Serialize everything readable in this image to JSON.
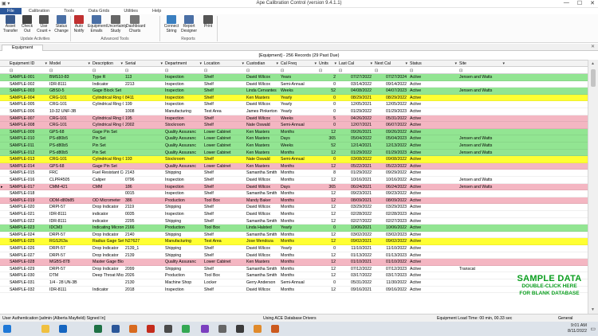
{
  "window": {
    "title": "Ape Calibration Control (version 9.4.1.1)",
    "controls": [
      "—",
      "☐",
      "✕"
    ]
  },
  "menu": [
    "File",
    "Calibration",
    "Tools",
    "Data Grids",
    "Utilities",
    "Help"
  ],
  "ribbon": {
    "buttons": [
      {
        "id": "asset-transfer",
        "l1": "Asset",
        "l2": "Transfer",
        "color": "#3a5a8c"
      },
      {
        "id": "check-out",
        "l1": "Check",
        "l2": "Out",
        "color": "#444444"
      },
      {
        "id": "use-count",
        "l1": "Use",
        "l2": "Count +",
        "color": "#555555"
      },
      {
        "id": "status-change",
        "l1": "Status",
        "l2": "Change",
        "color": "#4a6fa5"
      },
      {
        "id": "auto-notify",
        "l1": "Auto",
        "l2": "Notify",
        "color": "#c03030"
      },
      {
        "id": "equipment-emails",
        "l1": "Equipment",
        "l2": "Emails",
        "color": "#4a6fa5"
      },
      {
        "id": "uncertainty-study",
        "l1": "Uncertainty",
        "l2": "Study",
        "color": "#666666"
      },
      {
        "id": "dashboard-charts",
        "l1": "Dashboard",
        "l2": "Charts",
        "color": "#777777"
      },
      {
        "id": "connect-string",
        "l1": "Connect",
        "l2": "String",
        "color": "#3a7fc0"
      },
      {
        "id": "report-designer",
        "l1": "Report",
        "l2": "Designer",
        "color": "#4a6fa5"
      },
      {
        "id": "print",
        "l1": "Print",
        "l2": "",
        "color": "#555555"
      }
    ],
    "groups": [
      "Update Activities",
      "Advanced Tools",
      "Reports"
    ]
  },
  "tab": {
    "label": "Equipment",
    "close": "✕"
  },
  "grid": {
    "header": "[Equipment] - 256 Records (29 Past Due)",
    "columns": [
      "Equipment ID",
      "Model",
      "Description",
      "Serial",
      "Department",
      "Location",
      "Custodian",
      "Cal Freq",
      "Units",
      "Last Cal",
      "Next Cal",
      "Status",
      "Site"
    ],
    "rows": [
      {
        "id": "SAMPLE-001",
        "model": "BMS10-83",
        "desc": "Type R",
        "serial": "113",
        "dept": "Inspection",
        "loc": "Shelf",
        "cust": "David Wilcox",
        "freq": "Years",
        "units": "2",
        "last": "07/27/2022",
        "next": "07/27/2024",
        "status": "Active",
        "site": "Jensen and Watts",
        "color": "green"
      },
      {
        "id": "SAMPLE-002",
        "model": "IDR-8111",
        "desc": "Indicator",
        "serial": "2213",
        "dept": "Inspection",
        "loc": "Shelf",
        "cust": "David Wilcox",
        "freq": "Semi-Annual",
        "units": "0",
        "last": "03/14/2022",
        "next": "09/14/2022",
        "status": "Active",
        "site": "",
        "color": "white"
      },
      {
        "id": "SAMPLE-003",
        "model": "GBS0-5",
        "desc": "Gage Block Set",
        "serial": "",
        "dept": "Inspection",
        "loc": "Shelf",
        "cust": "Linda Cervantes",
        "freq": "Weeks",
        "units": "52",
        "last": "04/08/2022",
        "next": "04/07/2023",
        "status": "Active",
        "site": "Jensen and Watts",
        "color": "green"
      },
      {
        "id": "SAMPLE-004",
        "model": "CRG-101",
        "desc": "Cylindrical Ring G",
        "serial": "8411",
        "dept": "Inspection",
        "loc": "Shelf",
        "cust": "Ken Masters",
        "freq": "Yearly",
        "units": "0",
        "last": "08/29/2021",
        "next": "08/29/2022",
        "status": "Active",
        "site": "",
        "color": "yellow"
      },
      {
        "id": "SAMPLE-005",
        "model": "CRG-101",
        "desc": "Cylindrical Ring G",
        "serial": "199",
        "dept": "Inspection",
        "loc": "Shelf",
        "cust": "David Wilcox",
        "freq": "Yearly",
        "units": "0",
        "last": "12/05/2021",
        "next": "12/05/2022",
        "status": "Active",
        "site": "",
        "color": "white"
      },
      {
        "id": "SAMPLE-006",
        "model": "10-32 UNF-3B",
        "desc": "",
        "serial": "1008",
        "dept": "Manufacturing",
        "loc": "Test Area",
        "cust": "James Pinkerton",
        "freq": "Yearly",
        "units": "0",
        "last": "01/29/2022",
        "next": "01/29/2023",
        "status": "Active",
        "site": "",
        "color": "white"
      },
      {
        "id": "SAMPLE-007",
        "model": "CRG-101",
        "desc": "Cylindrical Ring G",
        "serial": "195",
        "dept": "Inspection",
        "loc": "Shelf",
        "cust": "David Wilcox",
        "freq": "Weeks",
        "units": "5",
        "last": "04/26/2022",
        "next": "05/31/2022",
        "status": "Active",
        "site": "",
        "color": "pink"
      },
      {
        "id": "SAMPLE-008",
        "model": "CRG-101",
        "desc": "Cylindrical Ring G",
        "serial": "2002",
        "dept": "Stockroom",
        "loc": "Shelf",
        "cust": "Nate Oswald",
        "freq": "Semi-Annual",
        "units": "0",
        "last": "12/07/2021",
        "next": "06/07/2022",
        "status": "Active",
        "site": "",
        "color": "pink"
      },
      {
        "id": "SAMPLE-009",
        "model": "GPS-68",
        "desc": "Gage Pin Set",
        "serial": "",
        "dept": "Quality Assuranc",
        "loc": "Lower Cabinet",
        "cust": "Ken Masters",
        "freq": "Months",
        "units": "12",
        "last": "09/26/2021",
        "next": "09/26/2022",
        "status": "Active",
        "site": "",
        "color": "green"
      },
      {
        "id": "SAMPLE-010",
        "model": "PS-d80b5",
        "desc": "Pin Set",
        "serial": "",
        "dept": "Quality Assuranc",
        "loc": "Lower Cabinet",
        "cust": "Ken Masters",
        "freq": "Days",
        "units": "365",
        "last": "05/04/2022",
        "next": "05/04/2023",
        "status": "Active",
        "site": "Jensen and Watts",
        "color": "green"
      },
      {
        "id": "SAMPLE-011",
        "model": "PS-d80b5",
        "desc": "Pin Set",
        "serial": "",
        "dept": "Quality Assuranc",
        "loc": "Lower Cabinet",
        "cust": "Ken Masters",
        "freq": "Weeks",
        "units": "52",
        "last": "12/14/2021",
        "next": "12/13/2022",
        "status": "Active",
        "site": "Jensen and Watts",
        "color": "green"
      },
      {
        "id": "SAMPLE-012",
        "model": "PS-d80b5",
        "desc": "Pin Set",
        "serial": "",
        "dept": "Quality Assuranc",
        "loc": "Lower Cabinet",
        "cust": "Ken Masters",
        "freq": "Months",
        "units": "12",
        "last": "01/29/2022",
        "next": "01/29/2023",
        "status": "Active",
        "site": "Jensen and Watts",
        "color": "green"
      },
      {
        "id": "SAMPLE-013",
        "model": "CRG-101",
        "desc": "Cylindrical Ring G",
        "serial": "193",
        "dept": "Stockroom",
        "loc": "Shelf",
        "cust": "Nate Oswald",
        "freq": "Semi-Annual",
        "units": "0",
        "last": "03/08/2022",
        "next": "09/08/2022",
        "status": "Active",
        "site": "",
        "color": "yellow"
      },
      {
        "id": "SAMPLE-014",
        "model": "GPS-68",
        "desc": "Gage Pin Set",
        "serial": "",
        "dept": "Quality Assuranc",
        "loc": "Lower Cabinet",
        "cust": "Ken Masters",
        "freq": "Months",
        "units": "12",
        "last": "05/22/2021",
        "next": "05/22/2022",
        "status": "Active",
        "site": "",
        "color": "pink"
      },
      {
        "id": "SAMPLE-015",
        "model": "FRC",
        "desc": "Fuel Resistant Co",
        "serial": "2143",
        "dept": "Shipping",
        "loc": "Shelf",
        "cust": "Samantha Smith",
        "freq": "Months",
        "units": "8",
        "last": "01/29/2022",
        "next": "09/29/2022",
        "status": "Active",
        "site": "",
        "color": "white"
      },
      {
        "id": "SAMPLE-016",
        "model": "CLPR4505",
        "desc": "Caliper",
        "serial": "0796",
        "dept": "Inspection",
        "loc": "Shelf",
        "cust": "David Wilcox",
        "freq": "Months",
        "units": "12",
        "last": "10/16/2021",
        "next": "10/16/2022",
        "status": "Active",
        "site": "Jensen and Watts",
        "color": "white"
      },
      {
        "id": "SAMPLE-017",
        "model": "CMM-421",
        "desc": "CMM",
        "serial": "186",
        "dept": "Inspection",
        "loc": "Shelf",
        "cust": "David Wilcox",
        "freq": "Days",
        "units": "365",
        "last": "06/24/2021",
        "next": "06/24/2022",
        "status": "Active",
        "site": "Jensen and Watts",
        "color": "pink"
      },
      {
        "id": "SAMPLE-018",
        "model": "",
        "desc": "",
        "serial": "0015",
        "dept": "Inspection",
        "loc": "Shelf",
        "cust": "Samantha Smith",
        "freq": "Months",
        "units": "12",
        "last": "09/23/2021",
        "next": "09/23/2022",
        "status": "Active",
        "site": "",
        "color": "white"
      },
      {
        "id": "SAMPLE-019",
        "model": "ODM-d80b85",
        "desc": "OD Micrometer",
        "serial": "386",
        "dept": "Production",
        "loc": "Tool Box",
        "cust": "Mandy Baker",
        "freq": "Months",
        "units": "12",
        "last": "08/09/2021",
        "next": "08/09/2022",
        "status": "Active",
        "site": "",
        "color": "pink"
      },
      {
        "id": "SAMPLE-020",
        "model": "DRPI-57",
        "desc": "Drop Indicator",
        "serial": "2119",
        "dept": "Shipping",
        "loc": "Shelf",
        "cust": "David Wilcox",
        "freq": "Months",
        "units": "12",
        "last": "03/29/2022",
        "next": "03/29/2023",
        "status": "Active",
        "site": "",
        "color": "white"
      },
      {
        "id": "SAMPLE-021",
        "model": "IDR-8111",
        "desc": "indicator",
        "serial": "0035",
        "dept": "Inspection",
        "loc": "Shelf",
        "cust": "David Wilcox",
        "freq": "Months",
        "units": "12",
        "last": "02/28/2022",
        "next": "02/28/2023",
        "status": "Active",
        "site": "",
        "color": "white"
      },
      {
        "id": "SAMPLE-022",
        "model": "IDR-8111",
        "desc": "indicator",
        "serial": "2295",
        "dept": "Shipping",
        "loc": "Shelf",
        "cust": "Samantha Smith",
        "freq": "Months",
        "units": "12",
        "last": "02/27/2022",
        "next": "02/27/2023",
        "status": "Active",
        "site": "",
        "color": "white"
      },
      {
        "id": "SAMPLE-023",
        "model": "IDCM3",
        "desc": "Indicating Microm",
        "serial": "2166",
        "dept": "Production",
        "loc": "Tool Box",
        "cust": "Linda Halsted",
        "freq": "Yearly",
        "units": "0",
        "last": "10/06/2021",
        "next": "10/06/2022",
        "status": "Active",
        "site": "",
        "color": "green"
      },
      {
        "id": "SAMPLE-024",
        "model": "DRPI-57",
        "desc": "Drop Indicator",
        "serial": "2140",
        "dept": "Shipping",
        "loc": "Shelf",
        "cust": "Samantha Smith",
        "freq": "Months",
        "units": "12",
        "last": "03/02/2022",
        "next": "03/02/2023",
        "status": "Active",
        "site": "",
        "color": "white"
      },
      {
        "id": "SAMPLE-025",
        "model": "RGS263a",
        "desc": "Radius Gage Set",
        "serial": "N27627",
        "dept": "Manufacturing",
        "loc": "Test Area",
        "cust": "Jose Mendoza",
        "freq": "Months",
        "units": "12",
        "last": "09/02/2021",
        "next": "09/02/2022",
        "status": "Active",
        "site": "",
        "color": "yellow"
      },
      {
        "id": "SAMPLE-026",
        "model": "DRPI-57",
        "desc": "Drop Indicator",
        "serial": "2139_1",
        "dept": "Shipping",
        "loc": "Shelf",
        "cust": "David Wilcox",
        "freq": "Yearly",
        "units": "0",
        "last": "11/10/2021",
        "next": "11/10/2022",
        "status": "Active",
        "site": "",
        "color": "white"
      },
      {
        "id": "SAMPLE-027",
        "model": "DRPI-57",
        "desc": "Drop Indicator",
        "serial": "2139",
        "dept": "Shipping",
        "loc": "Shelf",
        "cust": "David Wilcox",
        "freq": "Months",
        "units": "12",
        "last": "01/13/2022",
        "next": "01/13/2023",
        "status": "Active",
        "site": "",
        "color": "white"
      },
      {
        "id": "SAMPLE-028",
        "model": "MGBS-878",
        "desc": "Master Gage Bloc",
        "serial": "",
        "dept": "Quality Assuranc",
        "loc": "Lower Cabinet",
        "cust": "Ken Masters",
        "freq": "Months",
        "units": "12",
        "last": "01/10/2021",
        "next": "01/10/2022",
        "status": "Active",
        "site": "",
        "color": "pink"
      },
      {
        "id": "SAMPLE-029",
        "model": "DRPI-57",
        "desc": "Drop Indicator",
        "serial": "2099",
        "dept": "Shipping",
        "loc": "Shelf",
        "cust": "Samantha Smith",
        "freq": "Months",
        "units": "12",
        "last": "07/12/2022",
        "next": "07/12/2023",
        "status": "Active",
        "site": "Transcat",
        "color": "white"
      },
      {
        "id": "SAMPLE-030",
        "model": "DTM",
        "desc": "Deep Throat Micr",
        "serial": "2026",
        "dept": "Production",
        "loc": "Tool Box",
        "cust": "Samantha Smith",
        "freq": "Months",
        "units": "12",
        "last": "03/17/2022",
        "next": "03/17/2023",
        "status": "Active",
        "site": "",
        "color": "white"
      },
      {
        "id": "SAMPLE-031",
        "model": "1/4 - 28 UN-3B",
        "desc": "",
        "serial": "2130",
        "dept": "Machine Shop",
        "loc": "Locker",
        "cust": "Gerry Anderson",
        "freq": "Semi-Annual",
        "units": "0",
        "last": "05/31/2022",
        "next": "11/30/2022",
        "status": "Active",
        "site": "",
        "color": "white"
      },
      {
        "id": "SAMPLE-032",
        "model": "IDR-8111",
        "desc": "Indicator",
        "serial": "2018",
        "dept": "Inspection",
        "loc": "Shelf",
        "cust": "David Wilcox",
        "freq": "Months",
        "units": "12",
        "last": "09/16/2021",
        "next": "09/16/2022",
        "status": "Active",
        "site": "",
        "color": "white"
      }
    ]
  },
  "overlay": {
    "line1": "SAMPLE DATA",
    "line2": "DOUBLE-CLICK HERE",
    "line3": "FOR BLANK DATABASE"
  },
  "status": {
    "user": "User Authentication [admin (Alberta Mayfield) Signed In]",
    "drivers": "Using ACE Database Drivers",
    "load": "Equipment Load Time: 00 min, 00.33 sec",
    "config": "General Configuration"
  },
  "taskbar": {
    "time": "9:01 AM",
    "date": "8/11/2022",
    "icons": [
      {
        "id": "windows",
        "color": "#1e78d7"
      },
      {
        "id": "search",
        "color": "#dde3ea"
      },
      {
        "id": "file-explorer",
        "color": "#f0c040"
      },
      {
        "id": "outlook",
        "color": "#1565c0"
      },
      {
        "id": "excel",
        "color": "#1e7145"
      },
      {
        "id": "word",
        "color": "#2b579a"
      },
      {
        "id": "app-orange",
        "color": "#d86a1f"
      },
      {
        "id": "app-red",
        "color": "#c42b1c"
      },
      {
        "id": "app-dark",
        "color": "#4a4a4a"
      },
      {
        "id": "chrome",
        "color": "#34a853"
      },
      {
        "id": "visual-studio",
        "color": "#7b3fbf"
      },
      {
        "id": "app-gray",
        "color": "#666666"
      },
      {
        "id": "app-dark2",
        "color": "#3a3a3a"
      },
      {
        "id": "app-orange2",
        "color": "#e08a2b"
      },
      {
        "id": "app-ape",
        "color": "#cc5a1e"
      }
    ]
  }
}
